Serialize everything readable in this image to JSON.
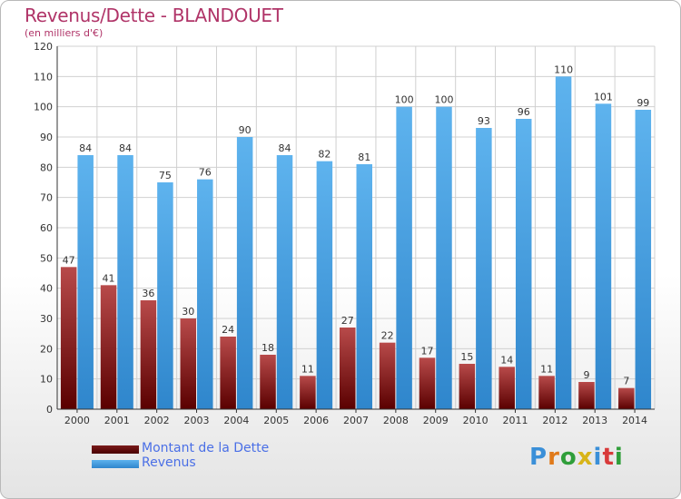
{
  "header": {
    "title": "Revenus/Dette - BLANDOUET",
    "subtitle": "(en milliers d'€)"
  },
  "logo": {
    "text": "Proxiti"
  },
  "colors": {
    "dette_dark": "#5a0000",
    "dette_light": "#b84a4a",
    "revenus_dark": "#2f86cc",
    "revenus_light": "#5eb3ee",
    "grid": "#cccccc",
    "title": "#b03468",
    "legend_text": "#4a6fe6"
  },
  "chart_data": {
    "type": "bar",
    "categories": [
      "2000",
      "2001",
      "2002",
      "2003",
      "2004",
      "2005",
      "2006",
      "2007",
      "2008",
      "2009",
      "2010",
      "2011",
      "2012",
      "2013",
      "2014"
    ],
    "series": [
      {
        "name": "Montant de la Dette",
        "values": [
          47,
          41,
          36,
          30,
          24,
          18,
          11,
          27,
          22,
          17,
          15,
          14,
          11,
          9,
          7
        ]
      },
      {
        "name": "Revenus",
        "values": [
          84,
          84,
          75,
          76,
          90,
          84,
          82,
          81,
          100,
          100,
          93,
          96,
          110,
          101,
          99
        ]
      }
    ],
    "title": "Revenus/Dette - BLANDOUET",
    "subtitle": "(en milliers d'€)",
    "ylim": [
      0,
      120
    ],
    "yticks": [
      0,
      10,
      20,
      30,
      40,
      50,
      60,
      70,
      80,
      90,
      100,
      110,
      120
    ],
    "grid": true,
    "legend_position": "bottom-left"
  }
}
